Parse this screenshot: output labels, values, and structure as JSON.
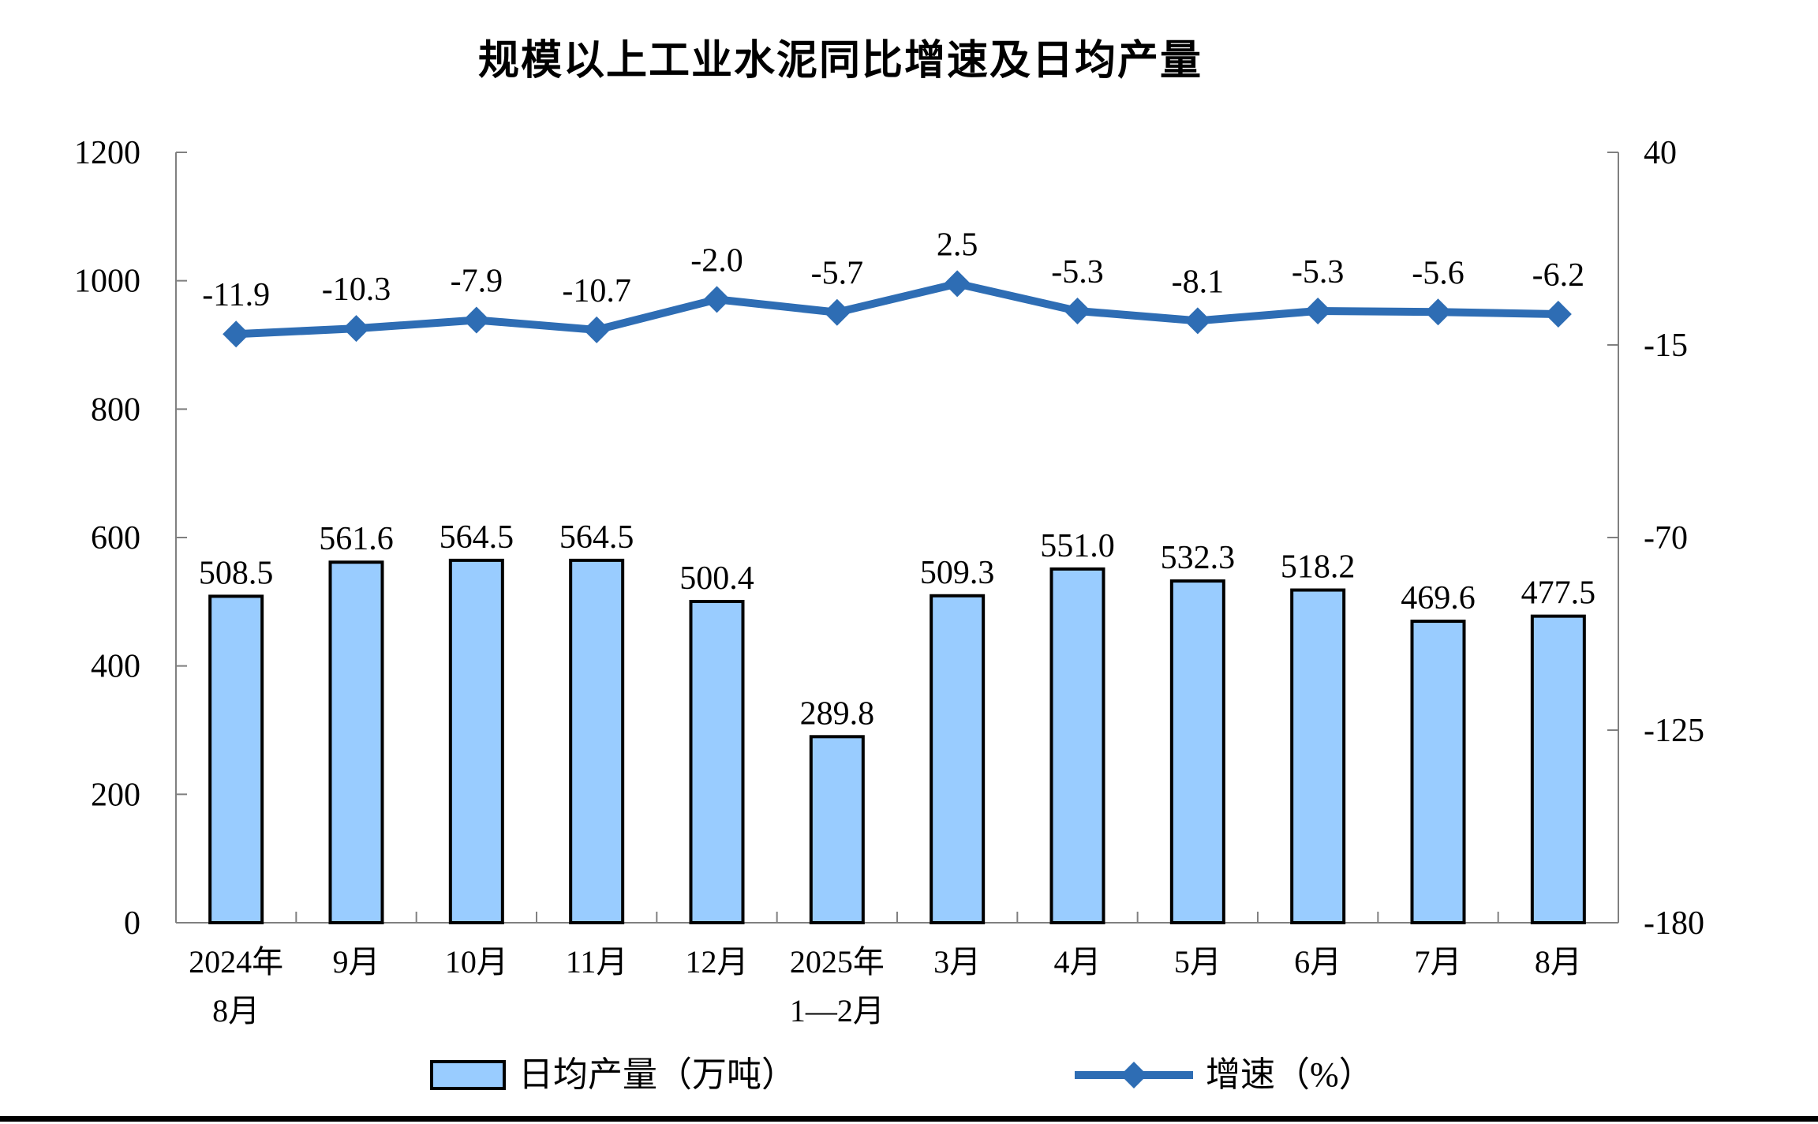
{
  "title": "规模以上工业水泥同比增速及日均产量",
  "chart_data": {
    "type": "bar+line",
    "title": "规模以上工业水泥同比增速及日均产量",
    "categories": [
      [
        "2024年",
        "8月"
      ],
      [
        "9月"
      ],
      [
        "10月"
      ],
      [
        "11月"
      ],
      [
        "12月"
      ],
      [
        "2025年",
        "1—2月"
      ],
      [
        "3月"
      ],
      [
        "4月"
      ],
      [
        "5月"
      ],
      [
        "6月"
      ],
      [
        "7月"
      ],
      [
        "8月"
      ]
    ],
    "series": [
      {
        "name": "日均产量（万吨）",
        "type": "bar",
        "axis": "left",
        "fill_color": "#99CCFF",
        "border_color": "#000000",
        "values": [
          508.5,
          561.6,
          564.5,
          564.5,
          500.4,
          289.8,
          509.3,
          551.0,
          532.3,
          518.2,
          469.6,
          477.5
        ]
      },
      {
        "name": "增速（%）",
        "type": "line",
        "axis": "right",
        "color": "#2E6DB4",
        "marker": "diamond",
        "values": [
          -11.9,
          -10.3,
          -7.9,
          -10.7,
          -2.0,
          -5.7,
          2.5,
          -5.3,
          -8.1,
          -5.3,
          -5.6,
          -6.2
        ]
      }
    ],
    "left_axis": {
      "min": 0,
      "max": 1200,
      "ticks": [
        1200,
        1000,
        800,
        600,
        400,
        200,
        0
      ]
    },
    "right_axis": {
      "min": -180,
      "max": 40,
      "ticks": [
        40,
        -15,
        -70,
        -125,
        -180
      ]
    },
    "grid": false,
    "value_labels": true,
    "value_label_decimals": 1,
    "legend_position": "bottom",
    "axis_color": "#808080",
    "text_color": "#000000"
  }
}
